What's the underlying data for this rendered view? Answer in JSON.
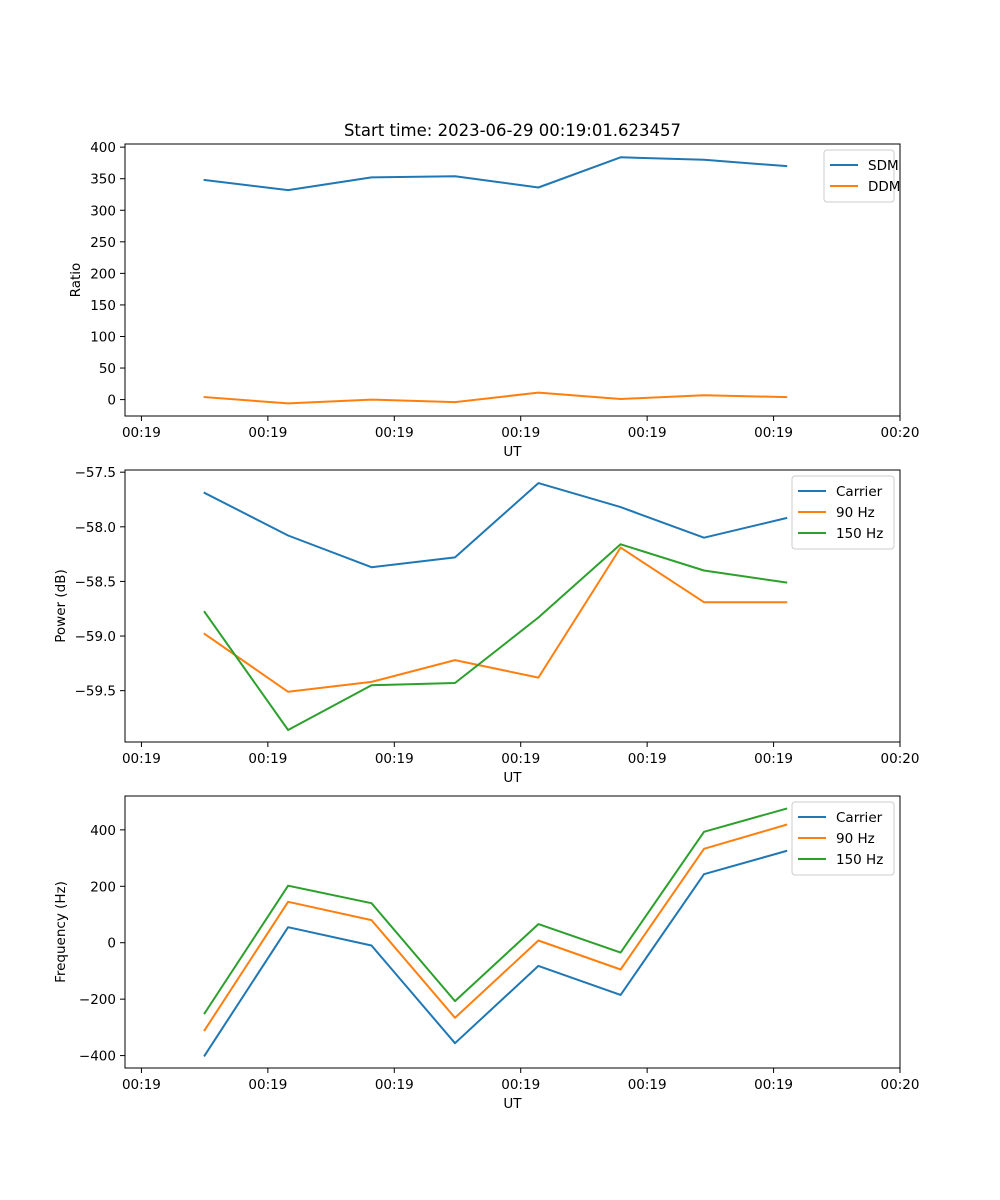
{
  "figure": {
    "title": "Start time: 2023-06-29 00:19:01.623457"
  },
  "chart_data": [
    {
      "type": "line",
      "title": "Start time: 2023-06-29 00:19:01.623457",
      "xlabel": "UT",
      "ylabel": "Ratio",
      "x_tick_labels": [
        "00:19",
        "00:19",
        "00:19",
        "00:19",
        "00:19",
        "00:19",
        "00:20"
      ],
      "x_ticks_seconds": [
        0,
        1,
        2,
        3,
        4,
        5,
        6
      ],
      "xlim": [
        -0.13,
        6.0
      ],
      "x_seconds_after_00:19:00": [
        0.5,
        1.16,
        1.82,
        2.48,
        3.14,
        3.79,
        4.45,
        5.1
      ],
      "y_ticks": [
        0,
        50,
        100,
        150,
        200,
        250,
        300,
        350,
        400
      ],
      "ylim": [
        -26,
        405
      ],
      "legend_location": "upper right",
      "series": [
        {
          "name": "SDM",
          "color": "#1f77b4",
          "values": [
            348,
            332,
            352,
            354,
            336,
            384,
            380,
            370
          ]
        },
        {
          "name": "DDM",
          "color": "#ff7f0e",
          "values": [
            4,
            -6,
            0,
            -4,
            11,
            1,
            7,
            4
          ]
        }
      ]
    },
    {
      "type": "line",
      "xlabel": "UT",
      "ylabel": "Power (dB)",
      "x_tick_labels": [
        "00:19",
        "00:19",
        "00:19",
        "00:19",
        "00:19",
        "00:19",
        "00:20"
      ],
      "x_ticks_seconds": [
        0,
        1,
        2,
        3,
        4,
        5,
        6
      ],
      "xlim": [
        -0.13,
        6.0
      ],
      "x_seconds_after_00:19:00": [
        0.5,
        1.16,
        1.82,
        2.48,
        3.14,
        3.79,
        4.45,
        5.1
      ],
      "y_ticks": [
        -57.5,
        -58.0,
        -58.5,
        -59.0,
        -59.5
      ],
      "y_tick_labels": [
        "−57.5",
        "−58.0",
        "−58.5",
        "−59.0",
        "−59.5"
      ],
      "ylim": [
        -59.97,
        -57.48
      ],
      "legend_location": "upper right",
      "series": [
        {
          "name": "Carrier",
          "color": "#1f77b4",
          "values": [
            -57.69,
            -58.08,
            -58.37,
            -58.28,
            -57.6,
            -57.82,
            -58.1,
            -57.92
          ]
        },
        {
          "name": "90 Hz",
          "color": "#ff7f0e",
          "values": [
            -58.98,
            -59.51,
            -59.42,
            -59.22,
            -59.38,
            -58.19,
            -58.69,
            -58.69
          ]
        },
        {
          "name": "150 Hz",
          "color": "#2ca02c",
          "values": [
            -58.78,
            -59.86,
            -59.45,
            -59.43,
            -58.83,
            -58.16,
            -58.4,
            -58.51
          ]
        }
      ]
    },
    {
      "type": "line",
      "xlabel": "UT",
      "ylabel": "Frequency (Hz)",
      "x_tick_labels": [
        "00:19",
        "00:19",
        "00:19",
        "00:19",
        "00:19",
        "00:19",
        "00:20"
      ],
      "x_ticks_seconds": [
        0,
        1,
        2,
        3,
        4,
        5,
        6
      ],
      "xlim": [
        -0.13,
        6.0
      ],
      "x_seconds_after_00:19:00": [
        0.5,
        1.16,
        1.82,
        2.48,
        3.14,
        3.79,
        4.45,
        5.1
      ],
      "y_ticks": [
        -400,
        -200,
        0,
        200,
        400
      ],
      "y_tick_labels": [
        "−400",
        "−200",
        "0",
        "200",
        "400"
      ],
      "ylim": [
        -444,
        520
      ],
      "legend_location": "upper right",
      "series": [
        {
          "name": "Carrier",
          "color": "#1f77b4",
          "values": [
            -400,
            55,
            -10,
            -356,
            -82,
            -185,
            243,
            325
          ]
        },
        {
          "name": "90 Hz",
          "color": "#ff7f0e",
          "values": [
            -310,
            145,
            80,
            -266,
            8,
            -95,
            333,
            418
          ]
        },
        {
          "name": "150 Hz",
          "color": "#2ca02c",
          "values": [
            -250,
            202,
            140,
            -207,
            66,
            -35,
            393,
            475
          ]
        }
      ]
    }
  ]
}
